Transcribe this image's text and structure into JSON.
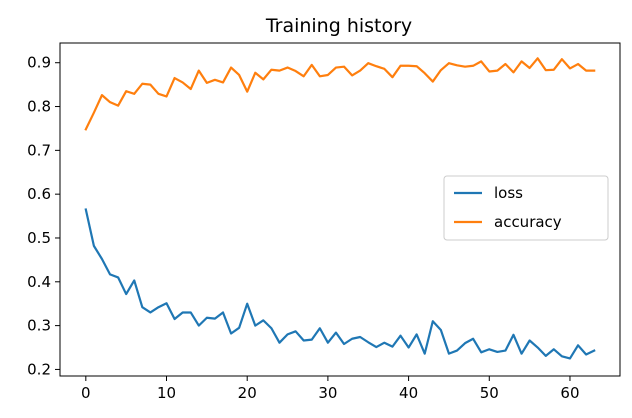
{
  "chart_data": {
    "type": "line",
    "title": "Training history",
    "xlabel": "",
    "ylabel": "",
    "xlim": [
      -3.2,
      66.2
    ],
    "ylim": [
      0.185,
      0.945
    ],
    "xticks": [
      0,
      10,
      20,
      30,
      40,
      50,
      60
    ],
    "yticks": [
      0.2,
      0.3,
      0.4,
      0.5,
      0.6,
      0.7,
      0.8,
      0.9
    ],
    "grid": false,
    "legend_position": "center-right",
    "series": [
      {
        "name": "loss",
        "color": "#1f77b4",
        "values": [
          0.565,
          0.482,
          0.452,
          0.417,
          0.41,
          0.372,
          0.403,
          0.342,
          0.33,
          0.342,
          0.351,
          0.315,
          0.33,
          0.33,
          0.3,
          0.318,
          0.316,
          0.33,
          0.282,
          0.295,
          0.35,
          0.3,
          0.312,
          0.294,
          0.261,
          0.28,
          0.287,
          0.266,
          0.268,
          0.294,
          0.261,
          0.284,
          0.258,
          0.27,
          0.274,
          0.262,
          0.251,
          0.261,
          0.252,
          0.277,
          0.25,
          0.28,
          0.236,
          0.31,
          0.29,
          0.236,
          0.243,
          0.26,
          0.27,
          0.239,
          0.246,
          0.24,
          0.243,
          0.279,
          0.236,
          0.266,
          0.25,
          0.231,
          0.246,
          0.23,
          0.225,
          0.255,
          0.234,
          0.243
        ]
      },
      {
        "name": "accuracy",
        "color": "#ff7f0e",
        "values": [
          0.748,
          0.786,
          0.826,
          0.81,
          0.802,
          0.835,
          0.829,
          0.852,
          0.85,
          0.829,
          0.823,
          0.865,
          0.855,
          0.84,
          0.882,
          0.854,
          0.861,
          0.855,
          0.889,
          0.872,
          0.834,
          0.877,
          0.862,
          0.884,
          0.882,
          0.889,
          0.881,
          0.869,
          0.895,
          0.869,
          0.872,
          0.889,
          0.891,
          0.871,
          0.882,
          0.899,
          0.892,
          0.886,
          0.867,
          0.893,
          0.893,
          0.892,
          0.876,
          0.857,
          0.883,
          0.899,
          0.894,
          0.891,
          0.893,
          0.903,
          0.88,
          0.882,
          0.897,
          0.878,
          0.903,
          0.888,
          0.91,
          0.883,
          0.884,
          0.908,
          0.887,
          0.897,
          0.882,
          0.882
        ]
      }
    ]
  }
}
